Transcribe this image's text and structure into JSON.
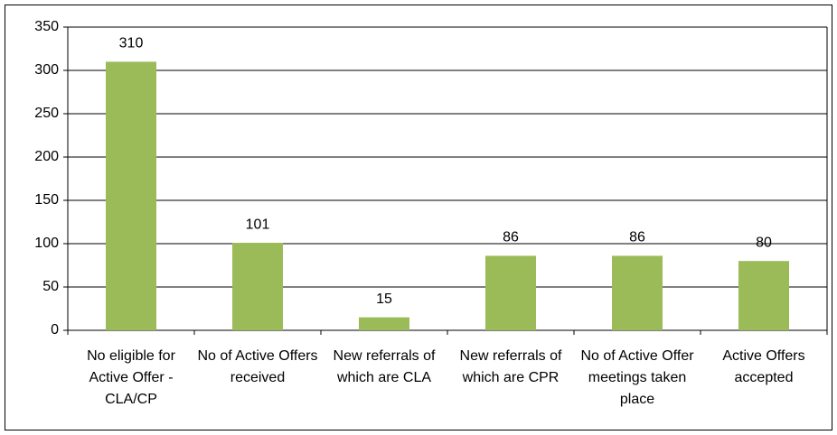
{
  "chart_data": {
    "type": "bar",
    "categories": [
      "No eligible for Active Offer - CLA/CP",
      "No of Active Offers received",
      "New referrals of which are CLA",
      "New referrals of which are CPR",
      "No of Active Offer meetings taken place",
      "Active Offers accepted"
    ],
    "values": [
      310,
      101,
      15,
      86,
      86,
      80
    ],
    "color": "#9bbb59",
    "ylim": [
      0,
      350
    ],
    "yticks": [
      0,
      50,
      100,
      150,
      200,
      250,
      300,
      350
    ],
    "grid": true
  }
}
